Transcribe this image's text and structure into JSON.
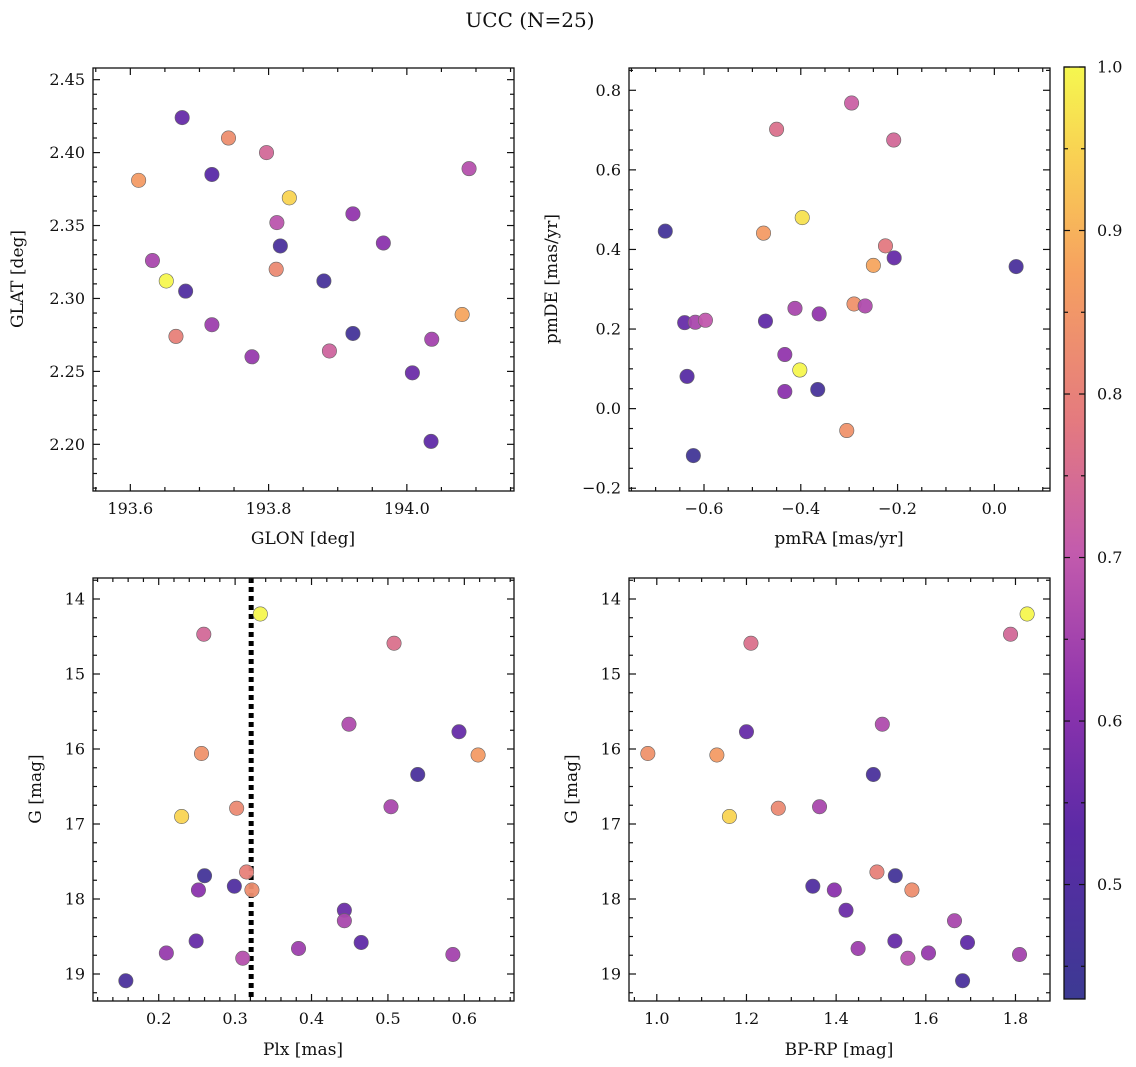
{
  "figure_title": "UCC (N=25)",
  "chart_data": [
    {
      "type": "scatter",
      "xlabel": "GLON [deg]",
      "ylabel": "GLAT [deg]",
      "xlim": [
        193.546,
        194.155
      ],
      "ylim": [
        2.168,
        2.458
      ],
      "xticks": [
        193.6,
        193.8,
        194.0
      ],
      "xtick_labels": [
        "193.6",
        "193.8",
        "194.0"
      ],
      "xminor": [
        193.55,
        193.65,
        193.7,
        193.75,
        193.85,
        193.9,
        193.95,
        194.05,
        194.1,
        194.15
      ],
      "yticks": [
        2.2,
        2.25,
        2.3,
        2.35,
        2.4,
        2.45
      ],
      "ytick_labels": [
        "2.20",
        "2.25",
        "2.30",
        "2.35",
        "2.40",
        "2.45"
      ],
      "yminor": [
        2.17,
        2.18,
        2.19,
        2.21,
        2.22,
        2.23,
        2.24,
        2.26,
        2.27,
        2.28,
        2.29,
        2.31,
        2.32,
        2.33,
        2.34,
        2.36,
        2.37,
        2.38,
        2.39,
        2.41,
        2.42,
        2.43,
        2.44
      ],
      "yinvert": false,
      "points": [
        {
          "x": 193.675,
          "y": 2.424,
          "c": 0.55
        },
        {
          "x": 193.742,
          "y": 2.41,
          "c": 0.83
        },
        {
          "x": 193.797,
          "y": 2.4,
          "c": 0.74
        },
        {
          "x": 193.612,
          "y": 2.381,
          "c": 0.86
        },
        {
          "x": 193.718,
          "y": 2.385,
          "c": 0.53
        },
        {
          "x": 193.83,
          "y": 2.369,
          "c": 0.95
        },
        {
          "x": 194.09,
          "y": 2.389,
          "c": 0.68
        },
        {
          "x": 193.922,
          "y": 2.358,
          "c": 0.62
        },
        {
          "x": 193.812,
          "y": 2.352,
          "c": 0.69
        },
        {
          "x": 193.817,
          "y": 2.336,
          "c": 0.48
        },
        {
          "x": 193.966,
          "y": 2.338,
          "c": 0.61
        },
        {
          "x": 193.632,
          "y": 2.326,
          "c": 0.66
        },
        {
          "x": 193.811,
          "y": 2.32,
          "c": 0.82
        },
        {
          "x": 193.652,
          "y": 2.312,
          "c": 1.0
        },
        {
          "x": 193.68,
          "y": 2.305,
          "c": 0.5
        },
        {
          "x": 193.88,
          "y": 2.312,
          "c": 0.47
        },
        {
          "x": 194.08,
          "y": 2.289,
          "c": 0.88
        },
        {
          "x": 193.718,
          "y": 2.282,
          "c": 0.64
        },
        {
          "x": 193.666,
          "y": 2.274,
          "c": 0.8
        },
        {
          "x": 193.922,
          "y": 2.276,
          "c": 0.46
        },
        {
          "x": 194.036,
          "y": 2.272,
          "c": 0.65
        },
        {
          "x": 193.888,
          "y": 2.264,
          "c": 0.73
        },
        {
          "x": 193.776,
          "y": 2.26,
          "c": 0.63
        },
        {
          "x": 194.008,
          "y": 2.249,
          "c": 0.56
        },
        {
          "x": 194.035,
          "y": 2.202,
          "c": 0.54
        }
      ]
    },
    {
      "type": "scatter",
      "xlabel": "pmRA [mas/yr]",
      "ylabel": "pmDE [mas/yr]",
      "xlim": [
        -0.755,
        0.115
      ],
      "ylim": [
        -0.207,
        0.856
      ],
      "xticks": [
        -0.6,
        -0.4,
        -0.2,
        0.0
      ],
      "xtick_labels": [
        "−0.6",
        "−0.4",
        "−0.2",
        "0.0"
      ],
      "xminor": [
        -0.75,
        -0.7,
        -0.65,
        -0.55,
        -0.5,
        -0.45,
        -0.35,
        -0.3,
        -0.25,
        -0.15,
        -0.1,
        -0.05,
        0.05,
        0.1
      ],
      "yticks": [
        -0.2,
        0.0,
        0.2,
        0.4,
        0.6,
        0.8
      ],
      "ytick_labels": [
        "−0.2",
        "0.0",
        "0.2",
        "0.4",
        "0.6",
        "0.8"
      ],
      "yminor": [
        -0.15,
        -0.1,
        -0.05,
        0.05,
        0.1,
        0.15,
        0.25,
        0.3,
        0.35,
        0.45,
        0.5,
        0.55,
        0.65,
        0.7,
        0.75,
        0.85
      ],
      "yinvert": false,
      "points": [
        {
          "x": -0.295,
          "y": 0.768,
          "c": 0.72
        },
        {
          "x": -0.45,
          "y": 0.702,
          "c": 0.76
        },
        {
          "x": -0.208,
          "y": 0.675,
          "c": 0.74
        },
        {
          "x": -0.68,
          "y": 0.446,
          "c": 0.46
        },
        {
          "x": -0.477,
          "y": 0.441,
          "c": 0.86
        },
        {
          "x": -0.397,
          "y": 0.48,
          "c": 0.97
        },
        {
          "x": -0.225,
          "y": 0.409,
          "c": 0.78
        },
        {
          "x": -0.207,
          "y": 0.379,
          "c": 0.55
        },
        {
          "x": -0.25,
          "y": 0.36,
          "c": 0.88
        },
        {
          "x": 0.045,
          "y": 0.357,
          "c": 0.48
        },
        {
          "x": -0.64,
          "y": 0.216,
          "c": 0.55
        },
        {
          "x": -0.618,
          "y": 0.217,
          "c": 0.66
        },
        {
          "x": -0.597,
          "y": 0.222,
          "c": 0.7
        },
        {
          "x": -0.473,
          "y": 0.22,
          "c": 0.54
        },
        {
          "x": -0.412,
          "y": 0.252,
          "c": 0.66
        },
        {
          "x": -0.362,
          "y": 0.238,
          "c": 0.62
        },
        {
          "x": -0.29,
          "y": 0.263,
          "c": 0.84
        },
        {
          "x": -0.267,
          "y": 0.258,
          "c": 0.67
        },
        {
          "x": -0.433,
          "y": 0.136,
          "c": 0.62
        },
        {
          "x": -0.635,
          "y": 0.081,
          "c": 0.52
        },
        {
          "x": -0.402,
          "y": 0.097,
          "c": 1.0
        },
        {
          "x": -0.433,
          "y": 0.043,
          "c": 0.61
        },
        {
          "x": -0.365,
          "y": 0.048,
          "c": 0.47
        },
        {
          "x": -0.305,
          "y": -0.055,
          "c": 0.84
        },
        {
          "x": -0.622,
          "y": -0.118,
          "c": 0.45
        }
      ]
    },
    {
      "type": "scatter",
      "xlabel": "Plx [mas]",
      "ylabel": "G [mag]",
      "xlim": [
        0.114,
        0.665
      ],
      "ylim": [
        13.72,
        19.36
      ],
      "xticks": [
        0.2,
        0.3,
        0.4,
        0.5,
        0.6
      ],
      "xtick_labels": [
        "0.2",
        "0.3",
        "0.4",
        "0.5",
        "0.6"
      ],
      "xminor": [
        0.12,
        0.14,
        0.16,
        0.18,
        0.22,
        0.24,
        0.26,
        0.28,
        0.32,
        0.34,
        0.36,
        0.38,
        0.42,
        0.44,
        0.46,
        0.48,
        0.52,
        0.54,
        0.56,
        0.58,
        0.62,
        0.64,
        0.66
      ],
      "yticks": [
        14,
        15,
        16,
        17,
        18,
        19
      ],
      "ytick_labels": [
        "14",
        "15",
        "16",
        "17",
        "18",
        "19"
      ],
      "yminor": [
        13.75,
        14.25,
        14.5,
        14.75,
        15.25,
        15.5,
        15.75,
        16.25,
        16.5,
        16.75,
        17.25,
        17.5,
        17.75,
        18.25,
        18.5,
        18.75,
        19.25
      ],
      "yinvert": true,
      "vline": 0.321,
      "points": [
        {
          "x": 0.333,
          "y": 14.2,
          "c": 1.0
        },
        {
          "x": 0.259,
          "y": 14.47,
          "c": 0.74
        },
        {
          "x": 0.508,
          "y": 14.59,
          "c": 0.76
        },
        {
          "x": 0.449,
          "y": 15.67,
          "c": 0.67
        },
        {
          "x": 0.593,
          "y": 15.77,
          "c": 0.55
        },
        {
          "x": 0.256,
          "y": 16.06,
          "c": 0.84
        },
        {
          "x": 0.618,
          "y": 16.08,
          "c": 0.86
        },
        {
          "x": 0.539,
          "y": 16.34,
          "c": 0.48
        },
        {
          "x": 0.302,
          "y": 16.79,
          "c": 0.82
        },
        {
          "x": 0.504,
          "y": 16.77,
          "c": 0.66
        },
        {
          "x": 0.23,
          "y": 16.9,
          "c": 0.95
        },
        {
          "x": 0.26,
          "y": 17.69,
          "c": 0.46
        },
        {
          "x": 0.315,
          "y": 17.64,
          "c": 0.8
        },
        {
          "x": 0.252,
          "y": 17.88,
          "c": 0.61
        },
        {
          "x": 0.299,
          "y": 17.83,
          "c": 0.5
        },
        {
          "x": 0.322,
          "y": 17.88,
          "c": 0.83
        },
        {
          "x": 0.443,
          "y": 18.15,
          "c": 0.56
        },
        {
          "x": 0.443,
          "y": 18.29,
          "c": 0.66
        },
        {
          "x": 0.249,
          "y": 18.56,
          "c": 0.55
        },
        {
          "x": 0.465,
          "y": 18.58,
          "c": 0.54
        },
        {
          "x": 0.383,
          "y": 18.66,
          "c": 0.64
        },
        {
          "x": 0.21,
          "y": 18.72,
          "c": 0.63
        },
        {
          "x": 0.585,
          "y": 18.74,
          "c": 0.65
        },
        {
          "x": 0.31,
          "y": 18.79,
          "c": 0.68
        },
        {
          "x": 0.157,
          "y": 19.09,
          "c": 0.48
        }
      ]
    },
    {
      "type": "scatter",
      "xlabel": "BP-RP [mag]",
      "ylabel": "G [mag]",
      "xlim": [
        0.938,
        1.877
      ],
      "ylim": [
        13.72,
        19.36
      ],
      "xticks": [
        1.0,
        1.2,
        1.4,
        1.6,
        1.8
      ],
      "xtick_labels": [
        "1.0",
        "1.2",
        "1.4",
        "1.6",
        "1.8"
      ],
      "xminor": [
        0.95,
        1.05,
        1.1,
        1.15,
        1.25,
        1.3,
        1.35,
        1.45,
        1.5,
        1.55,
        1.65,
        1.7,
        1.75,
        1.85
      ],
      "yticks": [
        14,
        15,
        16,
        17,
        18,
        19
      ],
      "ytick_labels": [
        "14",
        "15",
        "16",
        "17",
        "18",
        "19"
      ],
      "yminor": [
        13.75,
        14.25,
        14.5,
        14.75,
        15.25,
        15.5,
        15.75,
        16.25,
        16.5,
        16.75,
        17.25,
        17.5,
        17.75,
        18.25,
        18.5,
        18.75,
        19.25
      ],
      "yinvert": true,
      "points": [
        {
          "x": 1.826,
          "y": 14.2,
          "c": 1.0
        },
        {
          "x": 1.789,
          "y": 14.47,
          "c": 0.74
        },
        {
          "x": 1.21,
          "y": 14.59,
          "c": 0.76
        },
        {
          "x": 1.503,
          "y": 15.67,
          "c": 0.67
        },
        {
          "x": 1.2,
          "y": 15.77,
          "c": 0.55
        },
        {
          "x": 0.98,
          "y": 16.06,
          "c": 0.84
        },
        {
          "x": 1.134,
          "y": 16.08,
          "c": 0.86
        },
        {
          "x": 1.483,
          "y": 16.34,
          "c": 0.48
        },
        {
          "x": 1.271,
          "y": 16.79,
          "c": 0.82
        },
        {
          "x": 1.363,
          "y": 16.77,
          "c": 0.66
        },
        {
          "x": 1.162,
          "y": 16.9,
          "c": 0.95
        },
        {
          "x": 1.532,
          "y": 17.69,
          "c": 0.46
        },
        {
          "x": 1.491,
          "y": 17.64,
          "c": 0.8
        },
        {
          "x": 1.396,
          "y": 17.88,
          "c": 0.61
        },
        {
          "x": 1.348,
          "y": 17.83,
          "c": 0.5
        },
        {
          "x": 1.569,
          "y": 17.88,
          "c": 0.83
        },
        {
          "x": 1.422,
          "y": 18.15,
          "c": 0.56
        },
        {
          "x": 1.664,
          "y": 18.29,
          "c": 0.66
        },
        {
          "x": 1.531,
          "y": 18.56,
          "c": 0.55
        },
        {
          "x": 1.693,
          "y": 18.58,
          "c": 0.54
        },
        {
          "x": 1.449,
          "y": 18.66,
          "c": 0.64
        },
        {
          "x": 1.606,
          "y": 18.72,
          "c": 0.63
        },
        {
          "x": 1.809,
          "y": 18.74,
          "c": 0.65
        },
        {
          "x": 1.56,
          "y": 18.79,
          "c": 0.68
        },
        {
          "x": 1.682,
          "y": 19.09,
          "c": 0.48
        }
      ]
    }
  ],
  "colorbar": {
    "colormap": "plasma",
    "range": [
      0.43,
      1.0
    ],
    "ticks": [
      0.5,
      0.6,
      0.7,
      0.8,
      0.9,
      1.0
    ],
    "tick_labels": [
      "0.5",
      "0.6",
      "0.7",
      "0.8",
      "0.9",
      "1.0"
    ],
    "minor": [
      0.45,
      0.55,
      0.65,
      0.75,
      0.85,
      0.95
    ]
  }
}
